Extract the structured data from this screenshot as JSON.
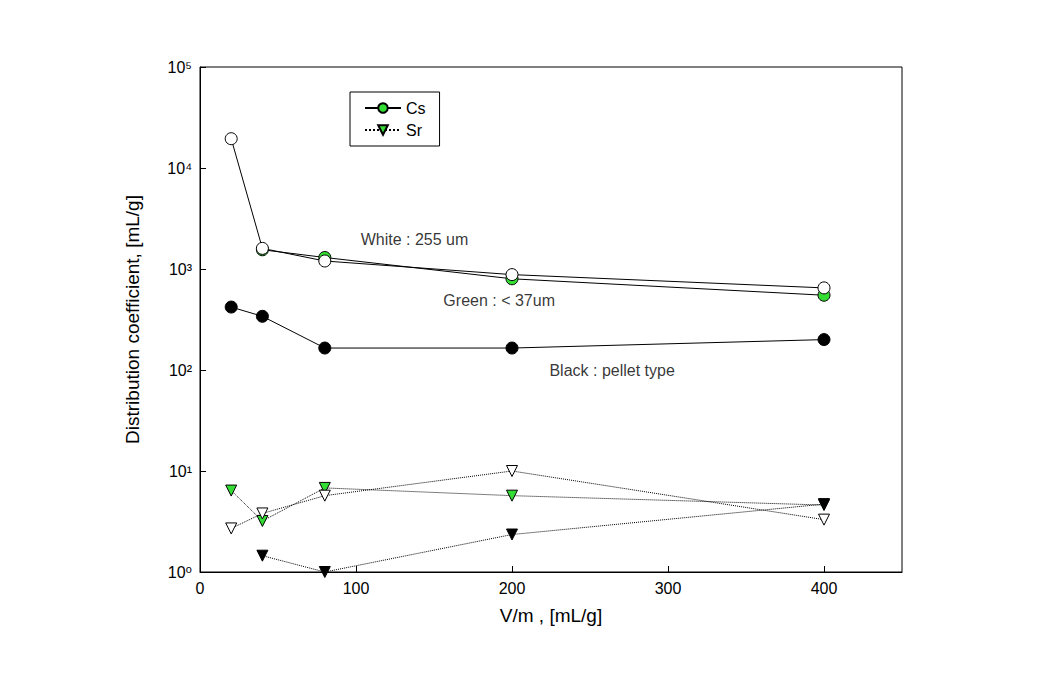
{
  "chart_data": {
    "type": "line",
    "x_label": "V/m , [mL/g]",
    "y_label": "Distribution coefficient, [mL/g]",
    "log": "y",
    "grid": false,
    "legend": "upper left",
    "x": [
      20,
      40,
      80,
      200,
      400
    ],
    "xlim": [
      0,
      450
    ],
    "xticks": [
      0,
      100,
      200,
      300,
      400
    ],
    "ylim": [
      1,
      100000
    ],
    "yticks": [
      {
        "value": 1,
        "label": "10⁰"
      },
      {
        "value": 10,
        "label": "10¹"
      },
      {
        "value": 100,
        "label": "10²"
      },
      {
        "value": 1000,
        "label": "10³"
      },
      {
        "value": 10000,
        "label": "10⁴"
      },
      {
        "value": 100000,
        "label": "10⁵"
      }
    ],
    "series": [
      {
        "name": "Cs",
        "color": "#33dd33",
        "marker": "circle",
        "line_style": "solid",
        "values": [
          null,
          1550,
          1300,
          800,
          550
        ]
      },
      {
        "name": "Sr",
        "color": "#33dd33",
        "marker": "triangle-down",
        "line_style": "dotted",
        "values": [
          6.4,
          3.2,
          6.8,
          5.7,
          4.6
        ]
      },
      {
        "name": "Cs",
        "color": "#ffffff",
        "marker": "circle",
        "line_style": "solid",
        "values": [
          19500,
          1600,
          1200,
          880,
          650
        ]
      },
      {
        "name": "Cs",
        "color": "#000000",
        "marker": "circle",
        "line_style": "solid",
        "values": [
          420,
          340,
          165,
          165,
          200
        ]
      },
      {
        "name": "Sr",
        "color": "#ffffff",
        "marker": "triangle-down",
        "line_style": "dotted",
        "values": [
          2.7,
          3.8,
          5.7,
          10,
          3.3
        ]
      },
      {
        "name": "Sr",
        "color": "#000000",
        "marker": "triangle-down",
        "line_style": "dotted",
        "values": [
          null,
          1.45,
          1.0,
          2.35,
          4.7
        ]
      }
    ],
    "annotations": [
      {
        "text": "White : 255 um",
        "x": 103,
        "y": 1950
      },
      {
        "text": "Green : < 37um",
        "x": 156,
        "y": 490
      },
      {
        "text": "Black : pellet type",
        "x": 224,
        "y": 98
      }
    ]
  }
}
